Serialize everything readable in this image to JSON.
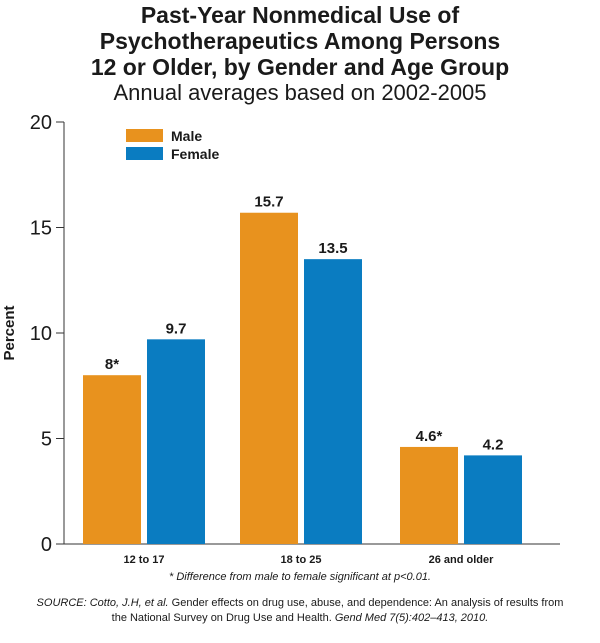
{
  "title_lines": [
    "Past-Year Nonmedical Use of",
    "Psychotherapeutics Among Persons",
    "12 or Older, by Gender and Age Group"
  ],
  "subtitle": "Annual averages based on 2002-2005",
  "footnote": "* Difference from male to female significant at p<0.01.",
  "source": {
    "prefix": "SOURCE: ",
    "authors": "Cotto, J.H, et al.",
    "text": " Gender effects on drug use, abuse, and dependence: An analysis of results from the National Survey on Drug Use and Health. ",
    "journal": "Gend Med 7(5):402–413, 2010."
  },
  "colors": {
    "male": "#E8921E",
    "female": "#0A7CC1",
    "axis": "#333333",
    "text": "#1a1a1a"
  },
  "chart_data": {
    "type": "bar",
    "title": "Past-Year Nonmedical Use of Psychotherapeutics Among Persons 12 or Older, by Gender and Age Group",
    "subtitle": "Annual averages based on 2002-2005",
    "xlabel": "",
    "ylabel": "Percent",
    "ylim": [
      0,
      20
    ],
    "yticks": [
      0,
      5,
      10,
      15,
      20
    ],
    "categories": [
      "12 to 17",
      "18 to 25",
      "26 and older"
    ],
    "series": [
      {
        "name": "Male",
        "color": "#E8921E",
        "values": [
          8,
          15.7,
          4.6
        ],
        "labels": [
          "8*",
          "15.7",
          "4.6*"
        ]
      },
      {
        "name": "Female",
        "color": "#0A7CC1",
        "values": [
          9.7,
          13.5,
          4.2
        ],
        "labels": [
          "9.7",
          "13.5",
          "4.2"
        ]
      }
    ],
    "legend_position": "top-left",
    "grid": false
  }
}
